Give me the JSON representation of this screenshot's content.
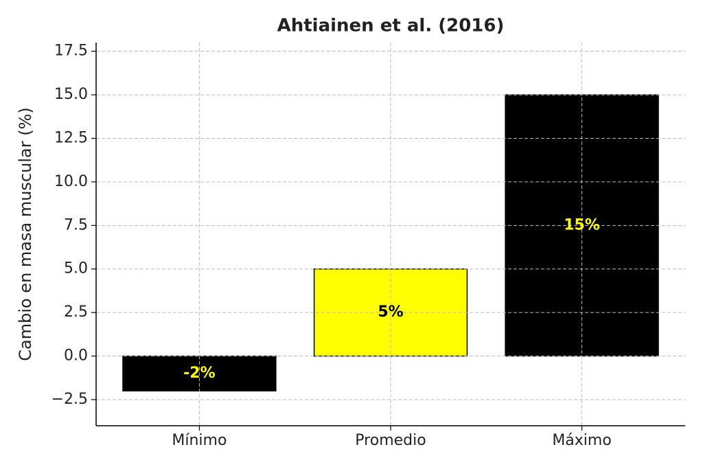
{
  "chart_data": {
    "type": "bar",
    "title": "Ahtiainen et al. (2016)",
    "ylabel": "Cambio en masa muscular (%)",
    "categories": [
      "Mínimo",
      "Promedio",
      "Máximo"
    ],
    "values": [
      -2,
      5,
      15
    ],
    "value_labels": [
      "-2%",
      "5%",
      "15%"
    ],
    "colors": [
      "#000000",
      "#ffff00",
      "#000000"
    ],
    "label_colors": [
      "#ffff00",
      "#000000",
      "#ffff00"
    ],
    "ylim": [
      -4,
      18
    ],
    "yticks": [
      {
        "value": -2.5,
        "label": "−2.5"
      },
      {
        "value": 0,
        "label": "0.0"
      },
      2.5,
      {
        "value": 5,
        "label": "5.0"
      },
      7.5,
      {
        "value": 10,
        "label": "10.0"
      },
      12.5,
      {
        "value": 15,
        "label": "15.0"
      },
      17.5
    ],
    "grid": true
  }
}
